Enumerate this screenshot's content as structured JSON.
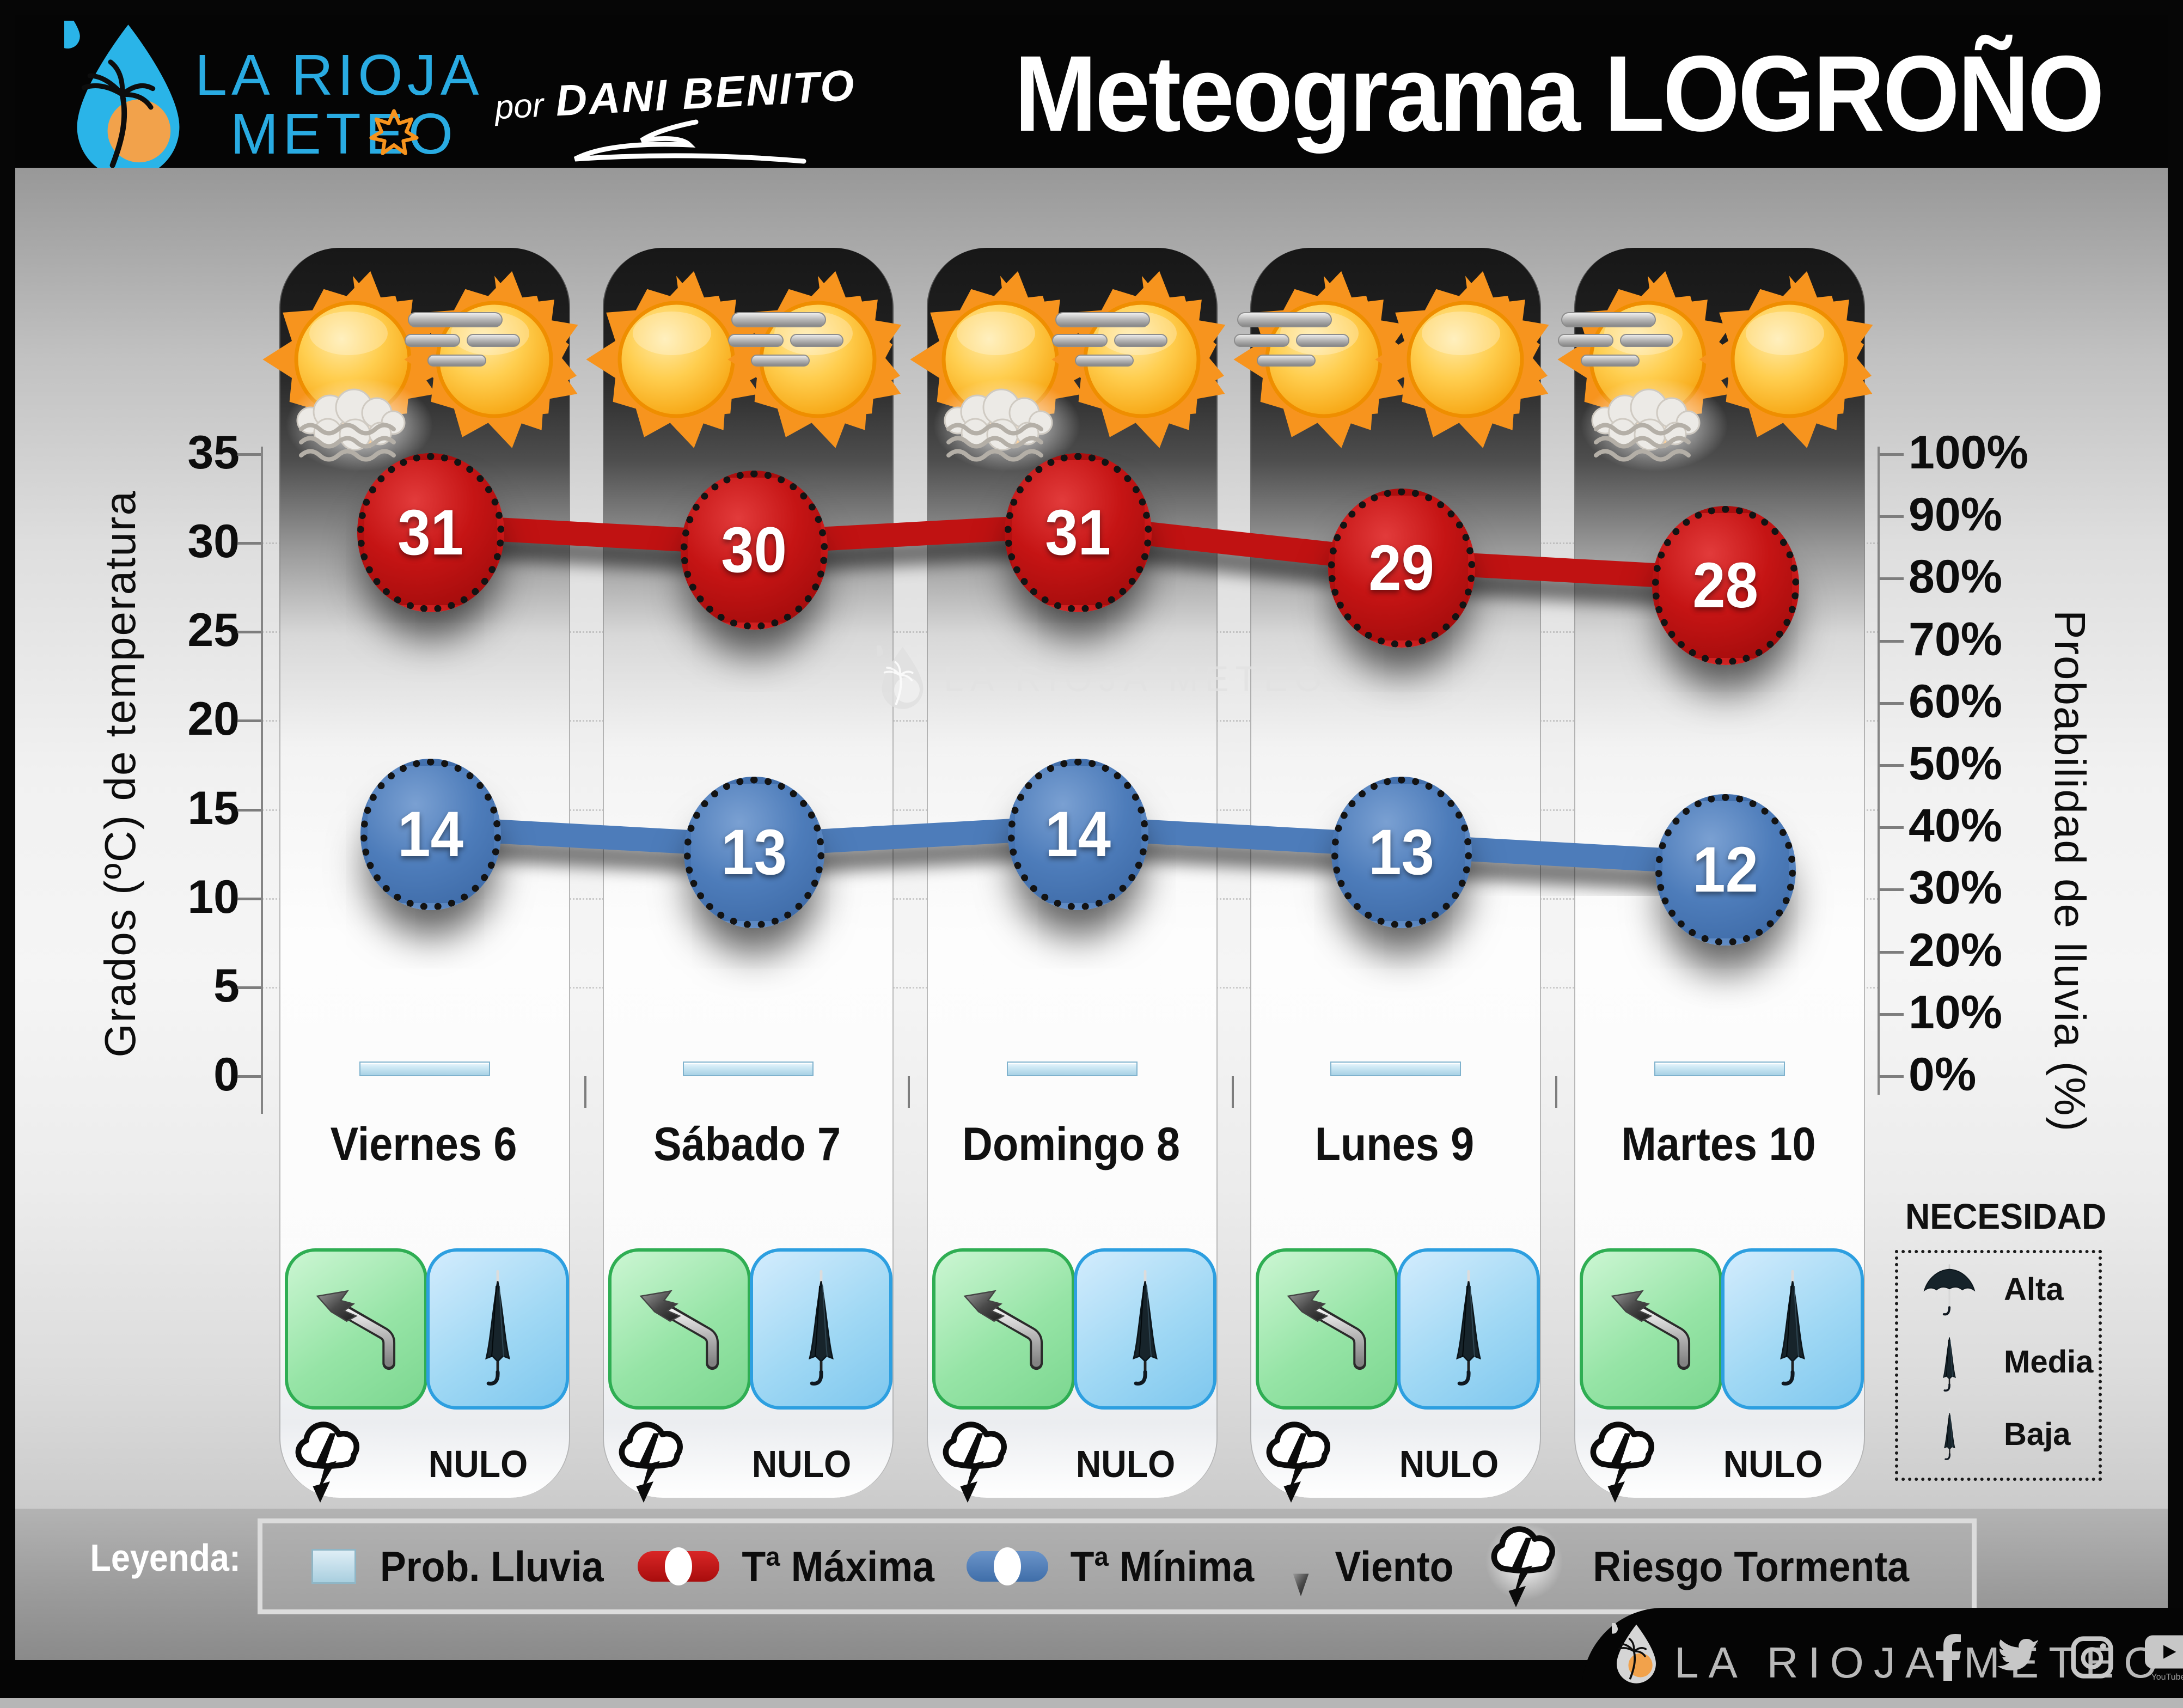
{
  "header": {
    "brand_line1": "LA RIOJA",
    "brand_line2": "METEO",
    "byline_prefix": "por",
    "byline_author": "DANI BENITO",
    "title": "Meteograma LOGROÑO"
  },
  "chart_data": {
    "type": "line",
    "title": "Meteograma LOGROÑO",
    "categories": [
      "Viernes 6",
      "Sábado 7",
      "Domingo 8",
      "Lunes 9",
      "Martes 10"
    ],
    "series": [
      {
        "name": "Tª Máxima",
        "type": "line",
        "color": "#c01212",
        "values": [
          31,
          30,
          31,
          29,
          28
        ]
      },
      {
        "name": "Tª Mínima",
        "type": "line",
        "color": "#4d7cba",
        "values": [
          14,
          13,
          14,
          13,
          12
        ]
      },
      {
        "name": "Prob. Lluvia",
        "type": "bar",
        "color": "#bfe0ef",
        "values_pct": [
          2,
          2,
          2,
          2,
          2
        ]
      }
    ],
    "y_left": {
      "label": "Grados (ºC) de temperatura",
      "ticks": [
        35,
        30,
        25,
        20,
        15,
        10,
        5,
        0
      ],
      "range": [
        0,
        35
      ]
    },
    "y_right": {
      "label": "Probabilidad de lluvia (%)",
      "ticks_pct": [
        100,
        90,
        80,
        70,
        60,
        50,
        40,
        30,
        20,
        10,
        0
      ],
      "range": [
        0,
        100
      ]
    },
    "grid": "horizontal-dotted",
    "legend_position": "bottom"
  },
  "days": [
    {
      "label": "Viernes 6",
      "tmax": 31,
      "tmin": 14,
      "prob_pct": 2,
      "storm": "NULO",
      "suns": [
        {
          "fog": true,
          "wind": false
        },
        {
          "fog": false,
          "wind": true
        }
      ]
    },
    {
      "label": "Sábado 7",
      "tmax": 30,
      "tmin": 13,
      "prob_pct": 2,
      "storm": "NULO",
      "suns": [
        {
          "fog": false,
          "wind": false
        },
        {
          "fog": false,
          "wind": true
        }
      ]
    },
    {
      "label": "Domingo 8",
      "tmax": 31,
      "tmin": 14,
      "prob_pct": 2,
      "storm": "NULO",
      "suns": [
        {
          "fog": true,
          "wind": false
        },
        {
          "fog": false,
          "wind": true
        }
      ]
    },
    {
      "label": "Lunes 9",
      "tmax": 29,
      "tmin": 13,
      "prob_pct": 2,
      "storm": "NULO",
      "suns": [
        {
          "fog": false,
          "wind": true
        },
        {
          "fog": false,
          "wind": false
        }
      ]
    },
    {
      "label": "Martes 10",
      "tmax": 28,
      "tmin": 12,
      "prob_pct": 2,
      "storm": "NULO",
      "suns": [
        {
          "fog": true,
          "wind": true
        },
        {
          "fog": false,
          "wind": false
        }
      ]
    }
  ],
  "watermark": {
    "text": "LA RIOJA METEO"
  },
  "legend": {
    "heading": "Leyenda:",
    "items": [
      {
        "icon": "rain-bar-swatch",
        "label": "Prob. Lluvia"
      },
      {
        "icon": "max-temp-line",
        "label": "Tª Máxima"
      },
      {
        "icon": "min-temp-line",
        "label": "Tª Mínima"
      },
      {
        "icon": "wind-arrow",
        "label": "Viento"
      },
      {
        "icon": "storm-cloud",
        "label": "Riesgo Tormenta"
      }
    ]
  },
  "necesidad": {
    "title": "NECESIDAD",
    "items": [
      {
        "icon": "umbrella-open",
        "label": "Alta"
      },
      {
        "icon": "umbrella-closed",
        "label": "Media"
      },
      {
        "icon": "umbrella-small",
        "label": "Baja"
      }
    ]
  },
  "footer": {
    "brand": "LA RIOJA METEO",
    "youtube_label": "YouTube",
    "social": [
      "facebook",
      "twitter",
      "instagram",
      "youtube"
    ]
  },
  "colors": {
    "max_line": "#c01212",
    "min_line": "#4d7cba",
    "rain_bar": "#bfe0ef",
    "accent_cyan": "#29ABE2",
    "sun_orange": "#F7941E",
    "green_box_border": "#2fae53",
    "blue_box_border": "#2d9fe0"
  }
}
